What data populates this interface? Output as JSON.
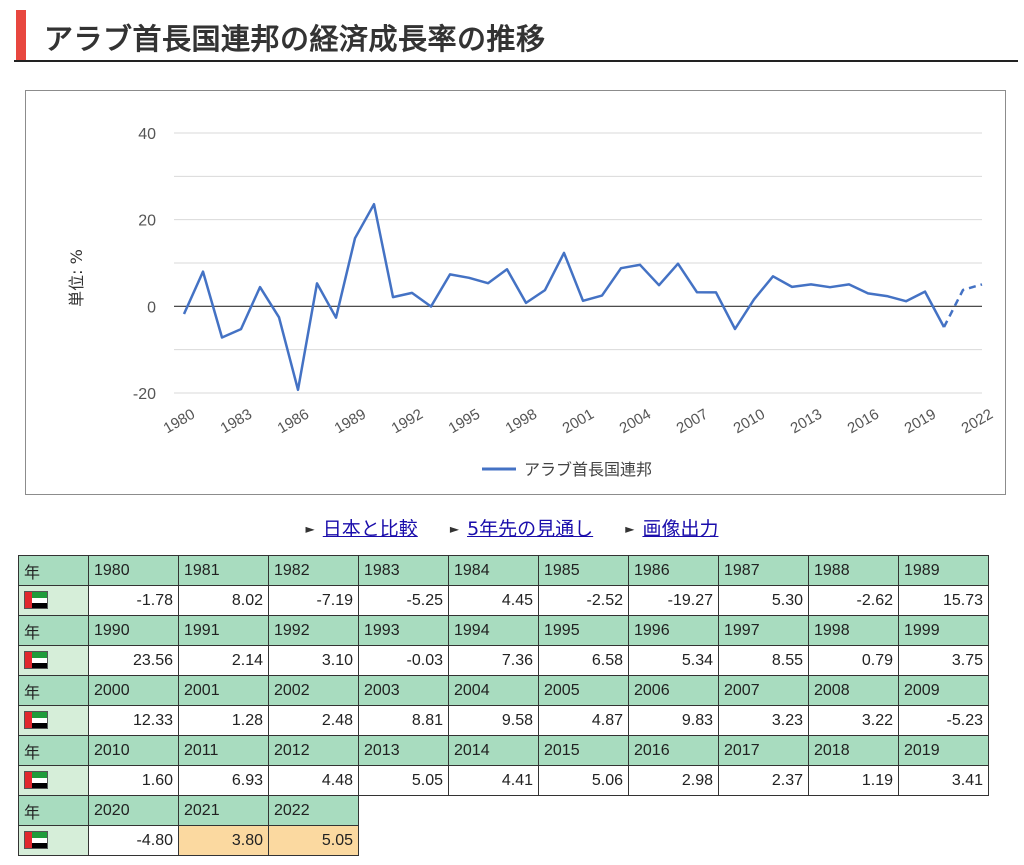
{
  "page_title": "アラブ首長国連邦の経済成長率の推移",
  "links": [
    "日本と比較",
    "5年先の見通し",
    "画像出力"
  ],
  "table": {
    "year_label": "年",
    "flag_icon": "uae-flag-icon",
    "estimate_color": "#fbd9a0"
  },
  "colors": {
    "accent": "#e8473f",
    "line": "#4472c4",
    "header": "#a8dcbf"
  },
  "chart_data": {
    "type": "line",
    "title": "",
    "xlabel": "",
    "ylabel": "単位: %",
    "ylim": [
      -20,
      40
    ],
    "yticks": [
      "-20",
      "0",
      "20",
      "40"
    ],
    "xticks": [
      "1980",
      "1983",
      "1986",
      "1989",
      "1992",
      "1995",
      "1998",
      "2001",
      "2004",
      "2007",
      "2010",
      "2013",
      "2016",
      "2019",
      "2022"
    ],
    "legend": "bottom",
    "grid": true,
    "x": [
      1980,
      1981,
      1982,
      1983,
      1984,
      1985,
      1986,
      1987,
      1988,
      1989,
      1990,
      1991,
      1992,
      1993,
      1994,
      1995,
      1996,
      1997,
      1998,
      1999,
      2000,
      2001,
      2002,
      2003,
      2004,
      2005,
      2006,
      2007,
      2008,
      2009,
      2010,
      2011,
      2012,
      2013,
      2014,
      2015,
      2016,
      2017,
      2018,
      2019,
      2020,
      2021,
      2022
    ],
    "series": [
      {
        "name": "アラブ首長国連邦",
        "values": [
          "-1.78",
          "8.02",
          "-7.19",
          "-5.25",
          "4.45",
          "-2.52",
          "-19.27",
          "5.30",
          "-2.62",
          "15.73",
          "23.56",
          "2.14",
          "3.10",
          "-0.03",
          "7.36",
          "6.58",
          "5.34",
          "8.55",
          "0.79",
          "3.75",
          "12.33",
          "1.28",
          "2.48",
          "8.81",
          "9.58",
          "4.87",
          "9.83",
          "3.23",
          "3.22",
          "-5.23",
          "1.60",
          "6.93",
          "4.48",
          "5.05",
          "4.41",
          "5.06",
          "2.98",
          "2.37",
          "1.19",
          "3.41",
          "-4.80",
          "3.80",
          "5.05"
        ],
        "estimated_from": 2021
      }
    ]
  }
}
